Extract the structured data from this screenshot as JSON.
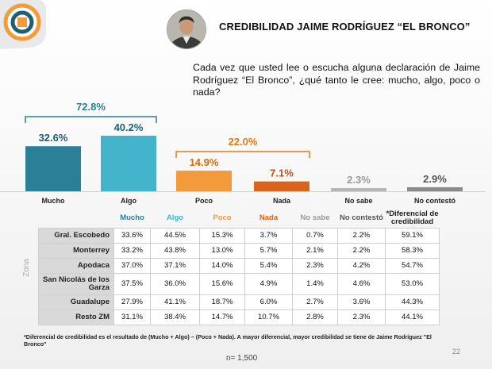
{
  "title": "CREDIBILIDAD JAIME RODRÍGUEZ “EL BRONCO”",
  "question": "Cada vez que usted lee o escucha alguna declaración de Jaime Rodríguez “El Bronco”, ¿qué tanto le cree: mucho, algo, poco o nada?",
  "chart_data": {
    "type": "bar",
    "categories": [
      "Mucho",
      "Algo",
      "Poco",
      "Nada",
      "No sabe",
      "No contestó"
    ],
    "values": [
      32.6,
      40.2,
      14.9,
      7.1,
      2.3,
      2.9
    ],
    "value_labels": [
      "32.6%",
      "40.2%",
      "14.9%",
      "7.1%",
      "2.3%",
      "2.9%"
    ],
    "colors": [
      "#2b7f96",
      "#44b3cc",
      "#f39a3c",
      "#d9641c",
      "#b7b7b7",
      "#8a8a8a"
    ],
    "label_colors": [
      "#1f5f74",
      "#1f5f74",
      "#d86a10",
      "#c0501a",
      "#999999",
      "#555555"
    ],
    "groups": [
      {
        "label": "72.8%",
        "from": 0,
        "to": 1,
        "color": "#2b7f96"
      },
      {
        "label": "22.0%",
        "from": 2,
        "to": 3,
        "color": "#e07a1c"
      }
    ],
    "ylim": [
      0,
      45
    ]
  },
  "table": {
    "headers": [
      "Mucho",
      "Algo",
      "Poco",
      "Nada",
      "No sabe",
      "No contestó",
      "*Diferencial de credibilidad"
    ],
    "header_colors": [
      "#2b7f96",
      "#44b3cc",
      "#f39a3c",
      "#d9641c",
      "#999999",
      "#555555",
      "#222222"
    ],
    "side_label": "Zona",
    "rows": [
      {
        "label": "Gral. Escobedo",
        "values": [
          "33.6%",
          "44.5%",
          "15.3%",
          "3.7%",
          "0.7%",
          "2.2%",
          "59.1%"
        ]
      },
      {
        "label": "Monterrey",
        "values": [
          "33.2%",
          "43.8%",
          "13.0%",
          "5.7%",
          "2.1%",
          "2.2%",
          "58.3%"
        ]
      },
      {
        "label": "Apodaca",
        "values": [
          "37.0%",
          "37.1%",
          "14.0%",
          "5.4%",
          "2.3%",
          "4.2%",
          "54.7%"
        ]
      },
      {
        "label": "San Nicolás de los Garza",
        "values": [
          "37.5%",
          "36.0%",
          "15.6%",
          "4.9%",
          "1.4%",
          "4.6%",
          "53.0%"
        ]
      },
      {
        "label": "Guadalupe",
        "values": [
          "27.9%",
          "41.1%",
          "18.7%",
          "6.0%",
          "2.7%",
          "3.6%",
          "44.3%"
        ]
      },
      {
        "label": "Resto ZM",
        "values": [
          "31.1%",
          "38.4%",
          "14.7%",
          "10.7%",
          "2.8%",
          "2.3%",
          "44.1%"
        ]
      }
    ]
  },
  "footnote": "*Diferencial de credibilidad es el resultado de (Mucho + Algo) – (Poco + Nada). A mayor diferencial, mayor credibilidad se tiene de Jaime Rodríguez \"El Bronco\"",
  "page_number": "22",
  "sample": "n= 1,500"
}
